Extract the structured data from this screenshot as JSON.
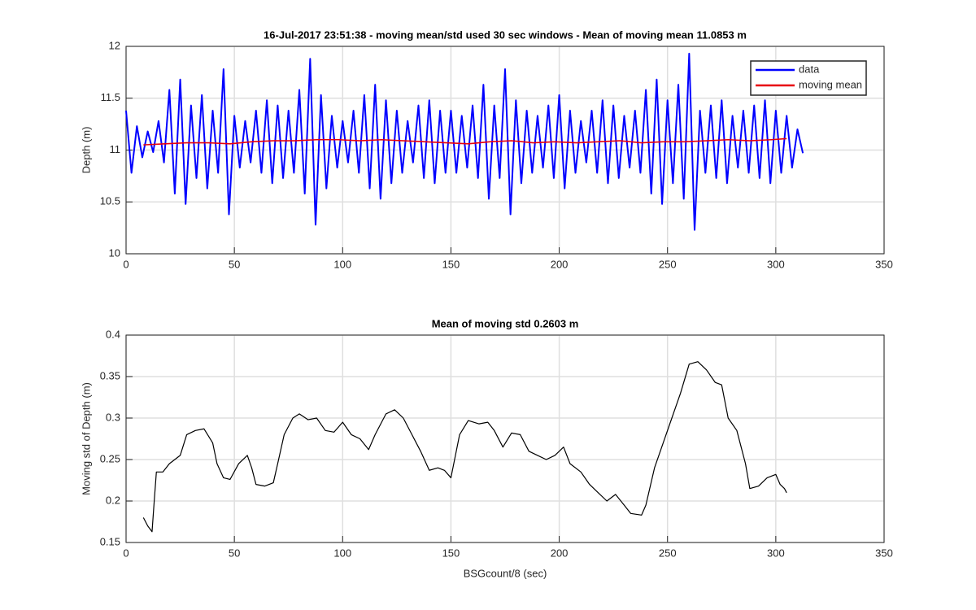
{
  "chart_data": [
    {
      "type": "line",
      "title": "16-Jul-2017 23:51:38 - moving mean/std used 30 sec windows - Mean of moving mean 11.0853 m",
      "ylabel": "Depth (m)",
      "xlim": [
        0,
        350
      ],
      "xticks": [
        0,
        50,
        100,
        150,
        200,
        250,
        300,
        350
      ],
      "ylim": [
        10,
        12
      ],
      "yticks": [
        10,
        10.5,
        11,
        11.5,
        12
      ],
      "grid": true,
      "legend": "northeast",
      "series": [
        {
          "name": "data",
          "color": "#0000ff",
          "x": [
            0,
            2.5,
            5,
            7.5,
            10,
            12.5,
            15,
            17.5,
            20,
            22.5,
            25,
            27.5,
            30,
            32.5,
            35,
            37.5,
            40,
            42.5,
            45,
            47.5,
            50,
            52.5,
            55,
            57.5,
            60,
            62.5,
            65,
            67.5,
            70,
            72.5,
            75,
            77.5,
            80,
            82.5,
            85,
            87.5,
            90,
            92.5,
            95,
            97.5,
            100,
            102.5,
            105,
            107.5,
            110,
            112.5,
            115,
            117.5,
            120,
            122.5,
            125,
            127.5,
            130,
            132.5,
            135,
            137.5,
            140,
            142.5,
            145,
            147.5,
            150,
            152.5,
            155,
            157.5,
            160,
            162.5,
            165,
            167.5,
            170,
            172.5,
            175,
            177.5,
            180,
            182.5,
            185,
            187.5,
            190,
            192.5,
            195,
            197.5,
            200,
            202.5,
            205,
            207.5,
            210,
            212.5,
            215,
            217.5,
            220,
            222.5,
            225,
            227.5,
            230,
            232.5,
            235,
            237.5,
            240,
            242.5,
            245,
            247.5,
            250,
            252.5,
            255,
            257.5,
            260,
            262.5,
            265,
            267.5,
            270,
            272.5,
            275,
            277.5,
            280,
            282.5,
            285,
            287.5,
            290,
            292.5,
            295,
            297.5,
            300,
            302.5,
            305,
            307.5,
            310,
            312.5
          ],
          "values": [
            11.38,
            10.78,
            11.23,
            10.93,
            11.18,
            10.98,
            11.28,
            10.88,
            11.58,
            10.58,
            11.68,
            10.48,
            11.43,
            10.73,
            11.53,
            10.63,
            11.38,
            10.78,
            11.78,
            10.38,
            11.33,
            10.83,
            11.28,
            10.88,
            11.38,
            10.78,
            11.48,
            10.68,
            11.43,
            10.73,
            11.38,
            10.78,
            11.58,
            10.58,
            11.88,
            10.28,
            11.53,
            10.63,
            11.33,
            10.83,
            11.28,
            10.88,
            11.38,
            10.78,
            11.53,
            10.63,
            11.63,
            10.53,
            11.48,
            10.68,
            11.38,
            10.78,
            11.28,
            10.88,
            11.43,
            10.73,
            11.48,
            10.68,
            11.38,
            10.78,
            11.38,
            10.78,
            11.33,
            10.83,
            11.43,
            10.73,
            11.63,
            10.53,
            11.43,
            10.73,
            11.78,
            10.38,
            11.48,
            10.68,
            11.38,
            10.78,
            11.33,
            10.83,
            11.43,
            10.73,
            11.53,
            10.63,
            11.38,
            10.78,
            11.28,
            10.88,
            11.38,
            10.78,
            11.48,
            10.68,
            11.43,
            10.73,
            11.33,
            10.83,
            11.38,
            10.78,
            11.58,
            10.58,
            11.68,
            10.48,
            11.48,
            10.68,
            11.63,
            10.53,
            11.93,
            10.23,
            11.38,
            10.78,
            11.43,
            10.73,
            11.48,
            10.68,
            11.33,
            10.83,
            11.38,
            10.78,
            11.43,
            10.73,
            11.48,
            10.68,
            11.38,
            10.78,
            11.33,
            10.83,
            11.2,
            10.97
          ]
        },
        {
          "name": "moving mean",
          "color": "#e8000b",
          "x": [
            8,
            18,
            28,
            38,
            48,
            58,
            68,
            78,
            88,
            98,
            108,
            118,
            128,
            138,
            148,
            158,
            168,
            178,
            188,
            198,
            208,
            218,
            228,
            238,
            248,
            258,
            268,
            278,
            288,
            298,
            305
          ],
          "values": [
            11.05,
            11.06,
            11.07,
            11.07,
            11.06,
            11.08,
            11.09,
            11.09,
            11.1,
            11.1,
            11.09,
            11.1,
            11.09,
            11.08,
            11.07,
            11.06,
            11.08,
            11.09,
            11.07,
            11.08,
            11.07,
            11.08,
            11.09,
            11.07,
            11.08,
            11.08,
            11.09,
            11.1,
            11.09,
            11.1,
            11.11
          ]
        }
      ]
    },
    {
      "type": "line",
      "title": "Mean of moving std 0.2603 m",
      "ylabel": "Moving std of Depth (m)",
      "xlabel": "BSGcount/8 (sec)",
      "xlim": [
        0,
        350
      ],
      "xticks": [
        0,
        50,
        100,
        150,
        200,
        250,
        300,
        350
      ],
      "ylim": [
        0.15,
        0.4
      ],
      "yticks": [
        0.15,
        0.2,
        0.25,
        0.3,
        0.35,
        0.4
      ],
      "grid": true,
      "series": [
        {
          "color": "#000000",
          "x": [
            8,
            10,
            12,
            13,
            14,
            17,
            20,
            25,
            28,
            32,
            36,
            40,
            42,
            45,
            48,
            52,
            56,
            58,
            60,
            64,
            68,
            70,
            73,
            77,
            80,
            84,
            88,
            92,
            96,
            100,
            104,
            108,
            112,
            115,
            120,
            124,
            128,
            132,
            136,
            140,
            144,
            147,
            150,
            154,
            158,
            163,
            167,
            170,
            174,
            178,
            182,
            186,
            190,
            194,
            198,
            202,
            205,
            210,
            214,
            218,
            222,
            226,
            230,
            233,
            238,
            240,
            244,
            248,
            252,
            256,
            260,
            264,
            268,
            272,
            275,
            278,
            282,
            286,
            288,
            292,
            296,
            300,
            302,
            304,
            305
          ],
          "values": [
            0.18,
            0.17,
            0.163,
            0.2,
            0.235,
            0.235,
            0.245,
            0.255,
            0.28,
            0.285,
            0.287,
            0.27,
            0.245,
            0.228,
            0.226,
            0.245,
            0.255,
            0.24,
            0.22,
            0.218,
            0.222,
            0.245,
            0.28,
            0.3,
            0.305,
            0.298,
            0.3,
            0.285,
            0.283,
            0.295,
            0.28,
            0.275,
            0.262,
            0.28,
            0.305,
            0.31,
            0.3,
            0.28,
            0.26,
            0.237,
            0.24,
            0.237,
            0.228,
            0.28,
            0.297,
            0.293,
            0.295,
            0.285,
            0.265,
            0.282,
            0.28,
            0.26,
            0.255,
            0.25,
            0.255,
            0.265,
            0.245,
            0.235,
            0.22,
            0.21,
            0.2,
            0.208,
            0.195,
            0.185,
            0.183,
            0.195,
            0.24,
            0.27,
            0.3,
            0.33,
            0.365,
            0.368,
            0.358,
            0.343,
            0.34,
            0.3,
            0.285,
            0.245,
            0.215,
            0.218,
            0.228,
            0.232,
            0.22,
            0.215,
            0.21
          ]
        }
      ]
    }
  ]
}
